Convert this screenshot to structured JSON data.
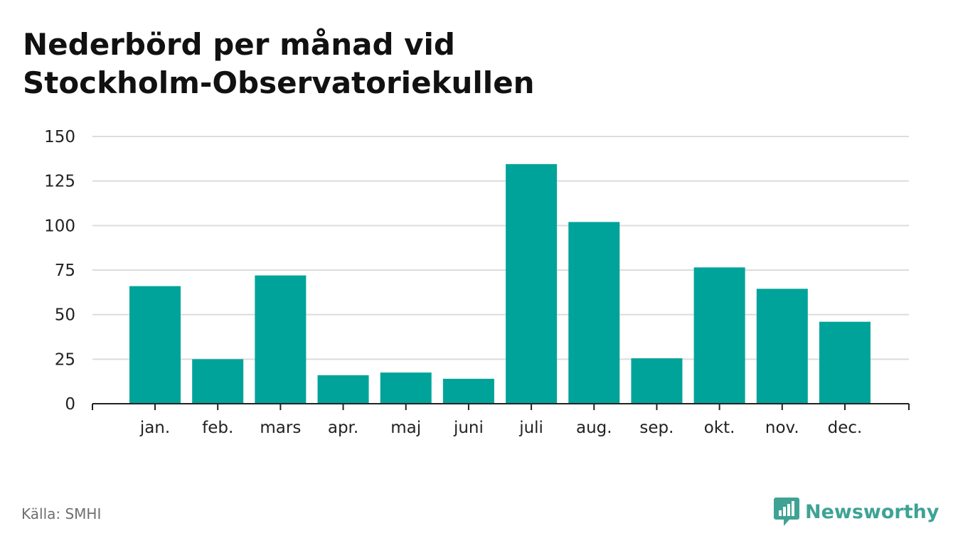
{
  "title_line1": "Nederbörd per månad vid",
  "title_line2": "Stockholm-Observatoriekullen",
  "source": "Källa: SMHI",
  "brand": {
    "name": "Newsworthy",
    "icon": "newsworthy-logo-icon",
    "color": "#3ea394"
  },
  "colors": {
    "bar": "#00a39a",
    "grid": "#dcdcdc",
    "axis": "#222222"
  },
  "chart_data": {
    "type": "bar",
    "categories": [
      "jan.",
      "feb.",
      "mars",
      "apr.",
      "maj",
      "juni",
      "juli",
      "aug.",
      "sep.",
      "okt.",
      "nov.",
      "dec."
    ],
    "values": [
      66,
      25,
      72,
      16,
      17.5,
      14,
      134.5,
      102,
      25.5,
      76.5,
      64.5,
      46
    ],
    "yticks": [
      0,
      25,
      50,
      75,
      100,
      125,
      150
    ],
    "ylim": [
      0,
      150
    ],
    "grid": true,
    "legend": false
  }
}
